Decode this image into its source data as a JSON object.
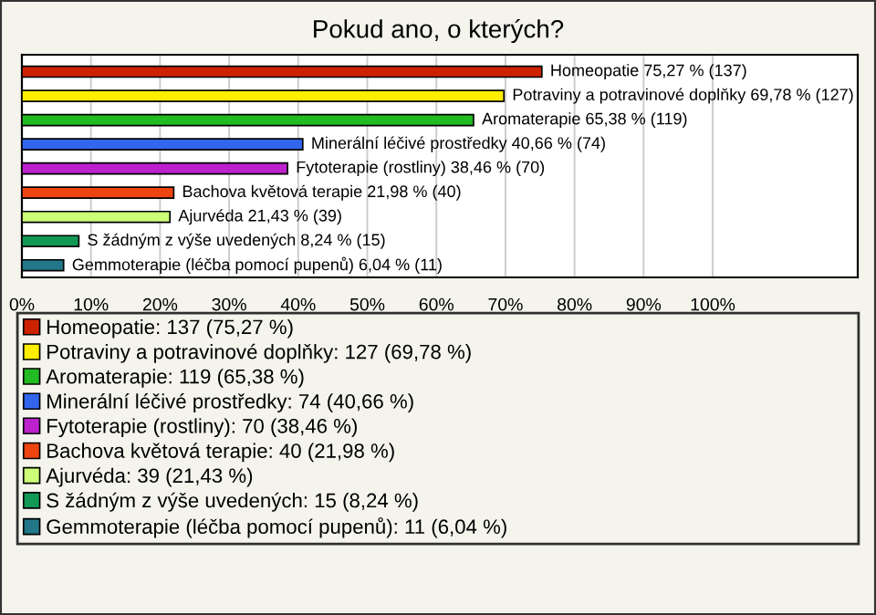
{
  "chart_data": {
    "type": "bar",
    "orientation": "horizontal",
    "title": "Pokud ano, o kterých?",
    "categories": [
      "Homeopatie",
      "Potraviny a potravinové doplňky",
      "Aromaterapie",
      "Minerální léčivé prostředky",
      "Fytoterapie (rostliny)",
      "Bachova květová terapie",
      "Ajurvéda",
      "S žádným z výše uvedených",
      "Gemmoterapie (léčba pomocí pupenů)"
    ],
    "series": [
      {
        "name": "Homeopatie: 137 (75,27 %)",
        "color": "#cc2200",
        "values": [
          75.27,
          null,
          null,
          null,
          null,
          null,
          null,
          null,
          null
        ],
        "value_labels": [
          "75,27 % (137)",
          null,
          null,
          null,
          null,
          null,
          null,
          null,
          null
        ]
      },
      {
        "name": "Potraviny a potravinové doplňky: 127 (69,78 %)",
        "color": "#ffee00",
        "values": [
          null,
          69.78,
          null,
          null,
          null,
          null,
          null,
          null,
          null
        ],
        "value_labels": [
          null,
          "69,78 % (127)",
          null,
          null,
          null,
          null,
          null,
          null,
          null
        ]
      },
      {
        "name": "Aromaterapie: 119 (65,38 %)",
        "color": "#22bb22",
        "values": [
          null,
          null,
          65.38,
          null,
          null,
          null,
          null,
          null,
          null
        ],
        "value_labels": [
          null,
          null,
          "65,38 % (119)",
          null,
          null,
          null,
          null,
          null,
          null
        ]
      },
      {
        "name": "Minerální léčivé prostředky: 74 (40,66 %)",
        "color": "#3366ee",
        "values": [
          null,
          null,
          null,
          40.66,
          null,
          null,
          null,
          null,
          null
        ],
        "value_labels": [
          null,
          null,
          null,
          "40,66 % (74)",
          null,
          null,
          null,
          null,
          null
        ]
      },
      {
        "name": "Fytoterapie (rostliny): 70 (38,46 %)",
        "color": "#bb22cc",
        "values": [
          null,
          null,
          null,
          null,
          38.46,
          null,
          null,
          null,
          null
        ],
        "value_labels": [
          null,
          null,
          null,
          null,
          "38,46 % (70)",
          null,
          null,
          null,
          null
        ]
      },
      {
        "name": "Bachova květová terapie: 40 (21,98 %)",
        "color": "#ee4411",
        "values": [
          null,
          null,
          null,
          null,
          null,
          21.98,
          null,
          null,
          null
        ],
        "value_labels": [
          null,
          null,
          null,
          null,
          null,
          "21,98 % (40)",
          null,
          null,
          null
        ]
      },
      {
        "name": "Ajurvéda: 39 (21,43 %)",
        "color": "#ccff77",
        "values": [
          null,
          null,
          null,
          null,
          null,
          null,
          21.43,
          null,
          null
        ],
        "value_labels": [
          null,
          null,
          null,
          null,
          null,
          null,
          "21,43 % (39)",
          null,
          null
        ]
      },
      {
        "name": "S žádným z výše uvedených: 15 (8,24 %)",
        "color": "#119955",
        "values": [
          null,
          null,
          null,
          null,
          null,
          null,
          null,
          8.24,
          null
        ],
        "value_labels": [
          null,
          null,
          null,
          null,
          null,
          null,
          null,
          "8,24 % (15)",
          null
        ]
      },
      {
        "name": "Gemmoterapie (léčba pomocí pupenů): 11 (6,04 %)",
        "color": "#227788",
        "values": [
          null,
          null,
          null,
          null,
          null,
          null,
          null,
          null,
          6.04
        ],
        "value_labels": [
          null,
          null,
          null,
          null,
          null,
          null,
          null,
          null,
          "6,04 % (11)"
        ]
      }
    ],
    "xlim": [
      0,
      121
    ],
    "xticks": [
      {
        "value": 0,
        "label": "0%"
      },
      {
        "value": 10,
        "label": "10%"
      },
      {
        "value": 20,
        "label": "20%"
      },
      {
        "value": 30,
        "label": "30%"
      },
      {
        "value": 40,
        "label": "40%"
      },
      {
        "value": 50,
        "label": "50%"
      },
      {
        "value": 60,
        "label": "60%"
      },
      {
        "value": 70,
        "label": "70%"
      },
      {
        "value": 80,
        "label": "80%"
      },
      {
        "value": 90,
        "label": "90%"
      },
      {
        "value": 100,
        "label": "100%"
      }
    ],
    "grid": "x",
    "legend": "bottom"
  }
}
